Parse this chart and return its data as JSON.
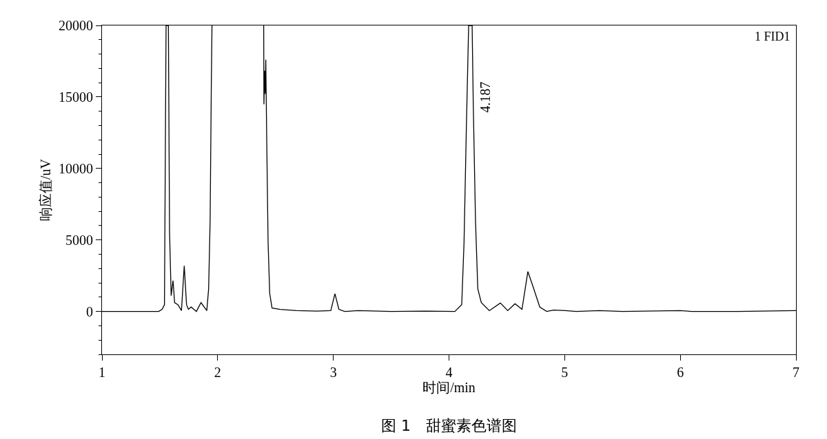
{
  "chart_data": {
    "type": "line",
    "xlabel": "时间/min",
    "ylabel": "响应值/uV",
    "x": [
      1.0,
      1.49,
      1.52,
      1.54,
      1.554,
      1.574,
      1.584,
      1.598,
      1.614,
      1.628,
      1.657,
      1.687,
      1.711,
      1.731,
      1.747,
      1.771,
      1.816,
      1.856,
      1.906,
      1.922,
      1.935,
      1.945,
      1.951,
      1.975,
      2.398,
      2.4,
      2.406,
      2.412,
      2.416,
      2.424,
      2.436,
      2.45,
      2.47,
      2.54,
      2.68,
      2.859,
      2.978,
      3.014,
      3.048,
      3.097,
      3.217,
      3.5,
      3.8,
      4.051,
      4.11,
      4.13,
      4.15,
      4.17,
      4.2,
      4.21,
      4.229,
      4.249,
      4.279,
      4.349,
      4.444,
      4.508,
      4.571,
      4.631,
      4.682,
      4.726,
      4.785,
      4.845,
      4.905,
      5.004,
      5.1,
      5.3,
      5.5,
      6.0,
      6.1,
      6.5,
      7.0
    ],
    "series": [
      {
        "color": "#000000",
        "values": [
          0,
          0,
          150,
          470,
          20000,
          20000,
          5600,
          1100,
          2160,
          620,
          470,
          60,
          3190,
          470,
          150,
          310,
          0,
          620,
          60,
          1590,
          6400,
          15700,
          20000,
          null,
          20000,
          14490,
          16830,
          15210,
          17610,
          12160,
          4810,
          1270,
          240,
          150,
          60,
          30,
          60,
          1240,
          150,
          0,
          60,
          0,
          30,
          0,
          480,
          4810,
          12800,
          20000,
          20000,
          14420,
          6400,
          1590,
          620,
          60,
          590,
          60,
          540,
          150,
          2790,
          1750,
          310,
          0,
          100,
          60,
          0,
          60,
          0,
          60,
          0,
          0,
          60
        ]
      }
    ],
    "xlim": [
      1,
      7
    ],
    "xticks": [
      1,
      2,
      3,
      4,
      5,
      6,
      7
    ],
    "ylim": [
      -3000,
      20000
    ],
    "yticks": [
      {
        "value": -3000,
        "label": null
      },
      {
        "value": -2000,
        "label": null
      },
      {
        "value": -1000,
        "label": null
      },
      0,
      {
        "value": 1000,
        "label": null
      },
      {
        "value": 2000,
        "label": null
      },
      {
        "value": 3000,
        "label": null
      },
      {
        "value": 4000,
        "label": null
      },
      5000,
      {
        "value": 6000,
        "label": null
      },
      {
        "value": 7000,
        "label": null
      },
      {
        "value": 8000,
        "label": null
      },
      {
        "value": 9000,
        "label": null
      },
      10000,
      {
        "value": 11000,
        "label": null
      },
      {
        "value": 12000,
        "label": null
      },
      {
        "value": 13000,
        "label": null
      },
      {
        "value": 14000,
        "label": null
      },
      15000,
      {
        "value": 16000,
        "label": null
      },
      {
        "value": 17000,
        "label": null
      },
      {
        "value": 18000,
        "label": null
      },
      {
        "value": 19000,
        "label": null
      },
      20000
    ],
    "annotations": [
      {
        "text": "4.187",
        "x": 4.187,
        "y": 15000
      },
      "1 FID1",
      "图 1　甜蜜素色谱图"
    ],
    "line_style": "solid"
  }
}
